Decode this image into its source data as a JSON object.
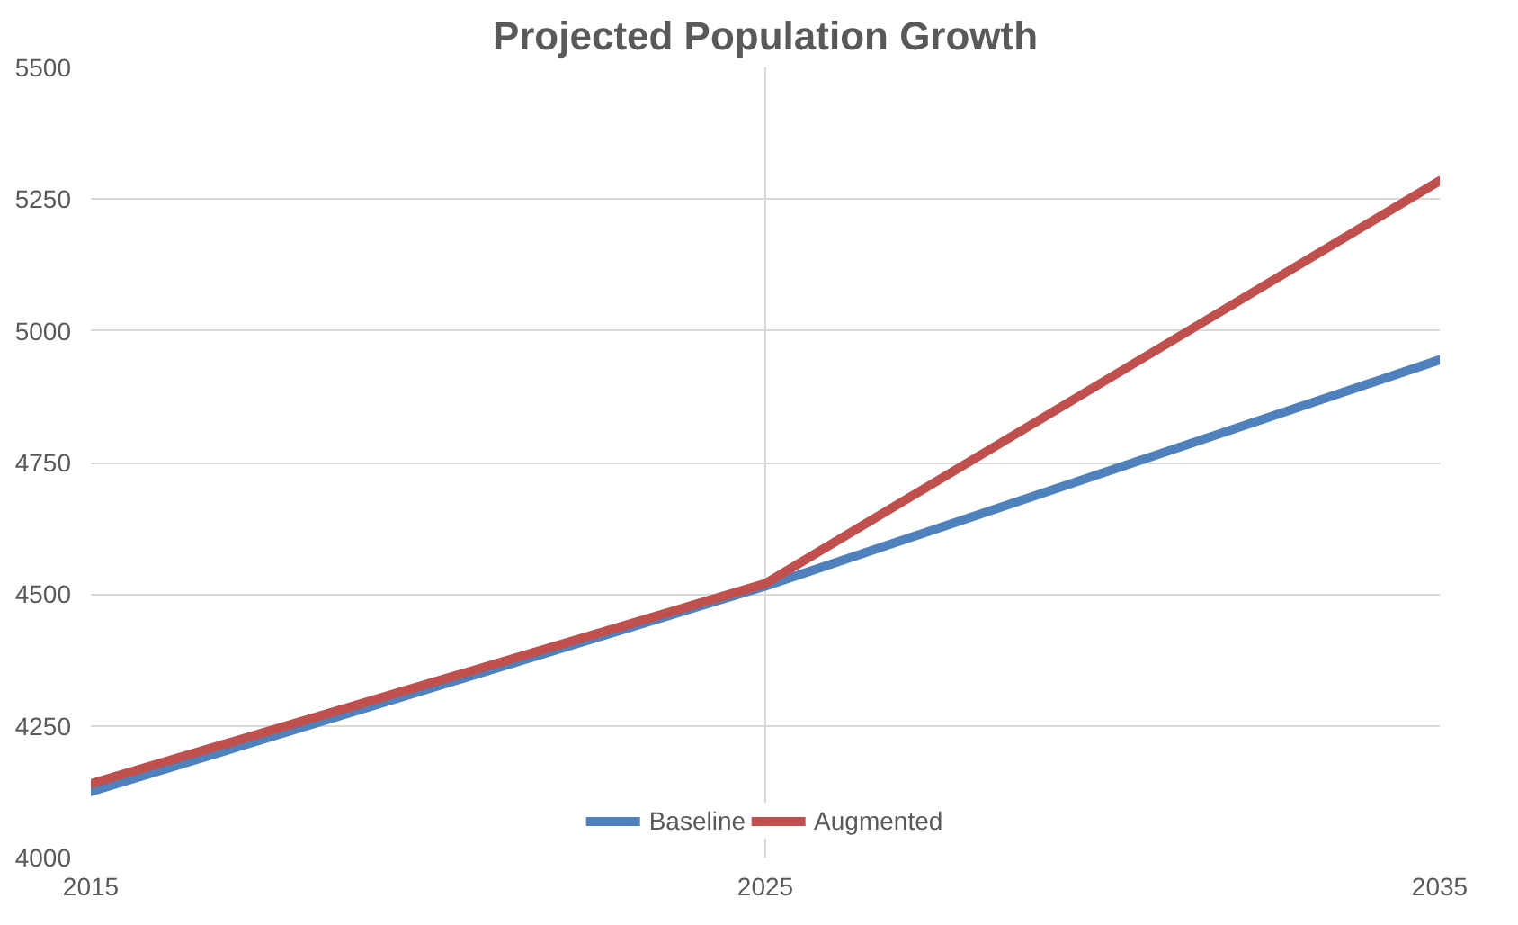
{
  "chart_data": {
    "type": "line",
    "title": "Projected Population Growth",
    "x": [
      2015,
      2025,
      2035
    ],
    "series": [
      {
        "name": "Baseline",
        "color": "#4f81bd",
        "values": [
          4125,
          4515,
          4945
        ]
      },
      {
        "name": "Augmented",
        "color": "#c0504d",
        "values": [
          4140,
          4520,
          5285
        ]
      }
    ],
    "xlim": [
      2015,
      2035
    ],
    "xticks": [
      2015,
      2025,
      2035
    ],
    "ylim": [
      4000,
      5500
    ],
    "yticks": [
      4000,
      4250,
      4500,
      4750,
      5000,
      5250,
      5500
    ],
    "grid": true,
    "legend": "bottom",
    "marker": "none",
    "line_style": "solid"
  }
}
